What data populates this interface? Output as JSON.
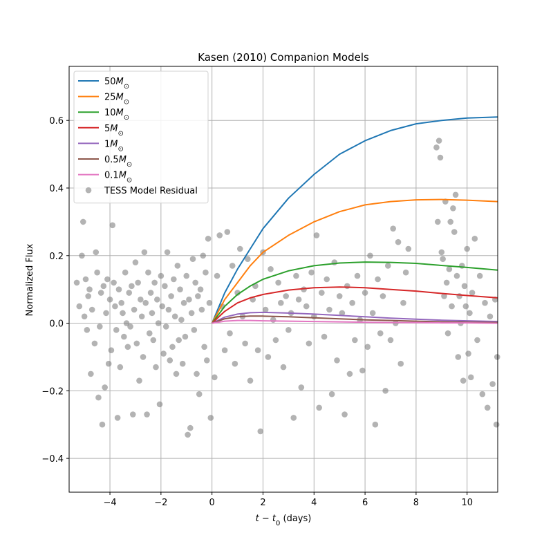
{
  "chart_data": {
    "type": "line",
    "title": "Kasen (2010) Companion Models",
    "xlabel": "t − t",
    "xlabel_sub": "0",
    "xlabel_unit": " (days)",
    "ylabel": "Normalized Flux",
    "xlim": [
      -5.6,
      11.2
    ],
    "ylim": [
      -0.5,
      0.76
    ],
    "xticks": [
      -4,
      -2,
      0,
      2,
      4,
      6,
      8,
      10
    ],
    "yticks": [
      -0.4,
      -0.2,
      0.0,
      0.2,
      0.4,
      0.6
    ],
    "ytick_labels": [
      "−0.4",
      "−0.2",
      "0.0",
      "0.2",
      "0.4",
      "0.6"
    ],
    "xtick_labels": [
      "−4",
      "−2",
      "0",
      "2",
      "4",
      "6",
      "8",
      "10"
    ],
    "grid": true,
    "legend_placement": "top-left",
    "x_model_range": [
      0,
      11.2
    ],
    "series": [
      {
        "name": "50M",
        "label_num": "50",
        "color": "#1f77b4",
        "x": [
          0,
          0.5,
          1,
          1.5,
          2,
          3,
          4,
          5,
          6,
          7,
          8,
          9,
          10,
          11.2
        ],
        "y": [
          0,
          0.09,
          0.16,
          0.22,
          0.28,
          0.37,
          0.44,
          0.5,
          0.54,
          0.57,
          0.59,
          0.6,
          0.607,
          0.61
        ]
      },
      {
        "name": "25M",
        "label_num": "25",
        "color": "#ff7f0e",
        "x": [
          0,
          0.5,
          1,
          1.5,
          2,
          3,
          4,
          5,
          6,
          7,
          8,
          9,
          10,
          11.2
        ],
        "y": [
          0,
          0.07,
          0.12,
          0.17,
          0.21,
          0.26,
          0.3,
          0.33,
          0.35,
          0.36,
          0.365,
          0.366,
          0.364,
          0.36
        ]
      },
      {
        "name": "10M",
        "label_num": "10",
        "color": "#2ca02c",
        "x": [
          0,
          0.5,
          1,
          1.5,
          2,
          3,
          4,
          5,
          6,
          7,
          8,
          9,
          10,
          11.2
        ],
        "y": [
          0,
          0.05,
          0.085,
          0.11,
          0.13,
          0.155,
          0.17,
          0.178,
          0.181,
          0.18,
          0.177,
          0.171,
          0.165,
          0.157
        ]
      },
      {
        "name": "5M",
        "label_num": "5",
        "color": "#d62728",
        "x": [
          0,
          0.5,
          1,
          1.5,
          2,
          3,
          4,
          5,
          6,
          7,
          8,
          9,
          10,
          11.2
        ],
        "y": [
          0,
          0.035,
          0.06,
          0.075,
          0.085,
          0.098,
          0.105,
          0.107,
          0.105,
          0.1,
          0.095,
          0.088,
          0.082,
          0.075
        ]
      },
      {
        "name": "1M",
        "label_num": "1",
        "color": "#9467bd",
        "x": [
          0,
          0.5,
          1,
          1.5,
          2,
          3,
          4,
          5,
          6,
          7,
          8,
          9,
          10,
          11.2
        ],
        "y": [
          0,
          0.018,
          0.027,
          0.031,
          0.032,
          0.03,
          0.027,
          0.023,
          0.019,
          0.015,
          0.012,
          0.009,
          0.007,
          0.005
        ]
      },
      {
        "name": "0.5M",
        "label_num": "0.5",
        "color": "#8c564b",
        "x": [
          0,
          0.5,
          1,
          1.5,
          2,
          3,
          4,
          5,
          6,
          7,
          8,
          9,
          10,
          11.2
        ],
        "y": [
          0,
          0.013,
          0.019,
          0.021,
          0.021,
          0.019,
          0.016,
          0.013,
          0.01,
          0.008,
          0.006,
          0.004,
          0.003,
          0.002
        ]
      },
      {
        "name": "0.1M",
        "label_num": "0.1",
        "color": "#e377c2",
        "x": [
          0,
          0.5,
          1,
          1.5,
          2,
          3,
          4,
          5,
          6,
          7,
          8,
          9,
          10,
          11.2
        ],
        "y": [
          0,
          0.006,
          0.008,
          0.008,
          0.007,
          0.006,
          0.005,
          0.004,
          0.003,
          0.002,
          0.002,
          0.001,
          0.001,
          0.0
        ]
      }
    ],
    "scatter": {
      "name": "TESS Model Residual",
      "color": "#808080",
      "points": [
        [
          -5.3,
          0.12
        ],
        [
          -5.2,
          0.05
        ],
        [
          -5.1,
          0.2
        ],
        [
          -5.05,
          0.3
        ],
        [
          -5.0,
          0.02
        ],
        [
          -4.95,
          0.13
        ],
        [
          -4.9,
          -0.02
        ],
        [
          -4.85,
          0.08
        ],
        [
          -4.8,
          0.1
        ],
        [
          -4.75,
          -0.15
        ],
        [
          -4.7,
          0.04
        ],
        [
          -4.6,
          -0.06
        ],
        [
          -4.55,
          0.21
        ],
        [
          -4.5,
          0.15
        ],
        [
          -4.45,
          -0.22
        ],
        [
          -4.4,
          -0.01
        ],
        [
          -4.35,
          0.09
        ],
        [
          -4.3,
          -0.3
        ],
        [
          -4.25,
          0.11
        ],
        [
          -4.2,
          -0.19
        ],
        [
          -4.15,
          0.03
        ],
        [
          -4.1,
          0.13
        ],
        [
          -4.05,
          -0.12
        ],
        [
          -4.0,
          0.07
        ],
        [
          -3.95,
          -0.08
        ],
        [
          -3.9,
          0.29
        ],
        [
          -3.85,
          0.12
        ],
        [
          -3.8,
          0.05
        ],
        [
          -3.75,
          -0.02
        ],
        [
          -3.7,
          -0.28
        ],
        [
          -3.65,
          0.1
        ],
        [
          -3.6,
          -0.13
        ],
        [
          -3.55,
          0.06
        ],
        [
          -3.5,
          0.03
        ],
        [
          -3.45,
          -0.04
        ],
        [
          -3.4,
          0.15
        ],
        [
          -3.35,
          0.0
        ],
        [
          -3.3,
          -0.07
        ],
        [
          -3.25,
          0.09
        ],
        [
          -3.2,
          -0.01
        ],
        [
          -3.15,
          0.11
        ],
        [
          -3.1,
          -0.27
        ],
        [
          -3.05,
          0.04
        ],
        [
          -3.0,
          0.18
        ],
        [
          -2.95,
          -0.06
        ],
        [
          -2.9,
          0.12
        ],
        [
          -2.85,
          -0.17
        ],
        [
          -2.8,
          0.07
        ],
        [
          -2.75,
          0.02
        ],
        [
          -2.7,
          -0.1
        ],
        [
          -2.65,
          0.21
        ],
        [
          -2.6,
          0.06
        ],
        [
          -2.55,
          -0.27
        ],
        [
          -2.5,
          0.15
        ],
        [
          -2.45,
          -0.03
        ],
        [
          -2.4,
          0.09
        ],
        [
          -2.35,
          0.03
        ],
        [
          -2.3,
          -0.05
        ],
        [
          -2.25,
          0.12
        ],
        [
          -2.2,
          -0.13
        ],
        [
          -2.15,
          0.07
        ],
        [
          -2.1,
          0.0
        ],
        [
          -2.05,
          -0.24
        ],
        [
          -2.0,
          0.14
        ],
        [
          -1.95,
          0.05
        ],
        [
          -1.9,
          -0.09
        ],
        [
          -1.85,
          0.11
        ],
        [
          -1.8,
          -0.01
        ],
        [
          -1.75,
          0.21
        ],
        [
          -1.7,
          0.04
        ],
        [
          -1.65,
          -0.11
        ],
        [
          -1.6,
          0.08
        ],
        [
          -1.55,
          -0.07
        ],
        [
          -1.5,
          0.13
        ],
        [
          -1.45,
          0.02
        ],
        [
          -1.4,
          -0.15
        ],
        [
          -1.35,
          0.17
        ],
        [
          -1.3,
          -0.05
        ],
        [
          -1.25,
          0.1
        ],
        [
          -1.2,
          0.01
        ],
        [
          -1.15,
          -0.12
        ],
        [
          -1.1,
          0.06
        ],
        [
          -1.05,
          -0.04
        ],
        [
          -1.0,
          0.14
        ],
        [
          -0.95,
          -0.33
        ],
        [
          -0.9,
          0.07
        ],
        [
          -0.85,
          -0.31
        ],
        [
          -0.8,
          0.03
        ],
        [
          -0.75,
          0.19
        ],
        [
          -0.7,
          -0.02
        ],
        [
          -0.65,
          0.12
        ],
        [
          -0.6,
          -0.15
        ],
        [
          -0.55,
          0.08
        ],
        [
          -0.5,
          -0.21
        ],
        [
          -0.45,
          0.1
        ],
        [
          -0.4,
          0.04
        ],
        [
          -0.35,
          0.2
        ],
        [
          -0.3,
          -0.07
        ],
        [
          -0.25,
          0.15
        ],
        [
          -0.2,
          -0.11
        ],
        [
          -0.15,
          0.25
        ],
        [
          -0.1,
          0.06
        ],
        [
          -0.05,
          -0.28
        ],
        [
          0.1,
          -0.16
        ],
        [
          0.2,
          0.14
        ],
        [
          0.3,
          0.26
        ],
        [
          0.4,
          0.05
        ],
        [
          0.5,
          -0.08
        ],
        [
          0.6,
          0.27
        ],
        [
          0.7,
          -0.03
        ],
        [
          0.8,
          0.17
        ],
        [
          0.9,
          -0.12
        ],
        [
          1.0,
          0.09
        ],
        [
          1.1,
          0.22
        ],
        [
          1.2,
          0.02
        ],
        [
          1.3,
          -0.06
        ],
        [
          1.4,
          0.19
        ],
        [
          1.5,
          -0.17
        ],
        [
          1.6,
          0.07
        ],
        [
          1.7,
          0.11
        ],
        [
          1.8,
          -0.08
        ],
        [
          1.9,
          -0.32
        ],
        [
          2.0,
          0.21
        ],
        [
          2.1,
          0.04
        ],
        [
          2.2,
          -0.1
        ],
        [
          2.3,
          0.16
        ],
        [
          2.4,
          0.01
        ],
        [
          2.5,
          -0.05
        ],
        [
          2.6,
          0.12
        ],
        [
          2.7,
          0.06
        ],
        [
          2.8,
          -0.13
        ],
        [
          2.9,
          0.08
        ],
        [
          3.0,
          -0.02
        ],
        [
          3.1,
          0.03
        ],
        [
          3.2,
          -0.28
        ],
        [
          3.3,
          0.14
        ],
        [
          3.4,
          0.07
        ],
        [
          3.5,
          -0.19
        ],
        [
          3.6,
          0.1
        ],
        [
          3.7,
          0.05
        ],
        [
          3.8,
          -0.06
        ],
        [
          3.9,
          0.15
        ],
        [
          4.0,
          0.02
        ],
        [
          4.1,
          0.26
        ],
        [
          4.2,
          -0.25
        ],
        [
          4.3,
          0.09
        ],
        [
          4.4,
          -0.04
        ],
        [
          4.5,
          0.13
        ],
        [
          4.6,
          0.04
        ],
        [
          4.7,
          -0.21
        ],
        [
          4.8,
          0.18
        ],
        [
          4.9,
          -0.11
        ],
        [
          5.0,
          0.08
        ],
        [
          5.1,
          0.03
        ],
        [
          5.2,
          -0.27
        ],
        [
          5.3,
          0.11
        ],
        [
          5.4,
          -0.15
        ],
        [
          5.5,
          0.06
        ],
        [
          5.6,
          -0.05
        ],
        [
          5.7,
          0.14
        ],
        [
          5.8,
          0.01
        ],
        [
          5.9,
          -0.14
        ],
        [
          6.0,
          0.09
        ],
        [
          6.1,
          -0.07
        ],
        [
          6.2,
          0.2
        ],
        [
          6.3,
          0.03
        ],
        [
          6.4,
          -0.3
        ],
        [
          6.5,
          0.13
        ],
        [
          6.6,
          -0.03
        ],
        [
          6.7,
          0.08
        ],
        [
          6.8,
          -0.2
        ],
        [
          6.9,
          0.17
        ],
        [
          7.0,
          -0.05
        ],
        [
          7.1,
          0.28
        ],
        [
          7.2,
          0.0
        ],
        [
          7.3,
          0.24
        ],
        [
          7.4,
          -0.12
        ],
        [
          7.5,
          0.06
        ],
        [
          7.6,
          0.15
        ],
        [
          7.7,
          0.22
        ],
        [
          8.8,
          0.52
        ],
        [
          8.85,
          0.3
        ],
        [
          8.9,
          0.54
        ],
        [
          8.95,
          0.49
        ],
        [
          9.0,
          0.21
        ],
        [
          9.05,
          0.19
        ],
        [
          9.1,
          0.08
        ],
        [
          9.15,
          0.36
        ],
        [
          9.2,
          0.12
        ],
        [
          9.25,
          -0.03
        ],
        [
          9.3,
          0.16
        ],
        [
          9.35,
          0.3
        ],
        [
          9.4,
          0.05
        ],
        [
          9.45,
          0.34
        ],
        [
          9.5,
          0.27
        ],
        [
          9.55,
          0.38
        ],
        [
          9.6,
          0.14
        ],
        [
          9.65,
          -0.1
        ],
        [
          9.7,
          0.08
        ],
        [
          9.75,
          0.0
        ],
        [
          9.8,
          0.17
        ],
        [
          9.85,
          -0.17
        ],
        [
          9.9,
          0.11
        ],
        [
          9.95,
          0.05
        ],
        [
          10.0,
          0.22
        ],
        [
          10.05,
          -0.09
        ],
        [
          10.1,
          0.03
        ],
        [
          10.15,
          -0.16
        ],
        [
          10.2,
          0.09
        ],
        [
          10.3,
          0.25
        ],
        [
          10.4,
          -0.05
        ],
        [
          10.5,
          0.14
        ],
        [
          10.6,
          -0.21
        ],
        [
          10.7,
          0.06
        ],
        [
          10.8,
          -0.25
        ],
        [
          10.9,
          0.02
        ],
        [
          11.0,
          -0.18
        ],
        [
          11.1,
          0.07
        ],
        [
          11.15,
          -0.3
        ],
        [
          11.18,
          -0.1
        ]
      ]
    }
  }
}
